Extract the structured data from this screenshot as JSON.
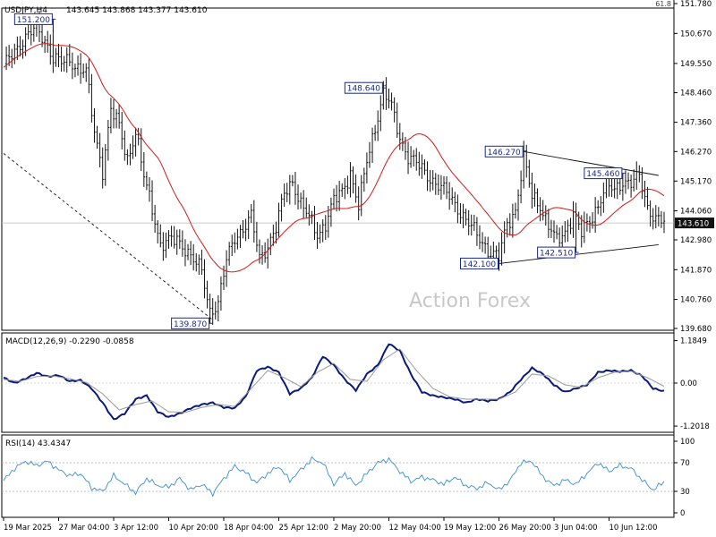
{
  "colors": {
    "background": "#ffffff",
    "candles": "#111111",
    "ma": "#d21a1a",
    "macd_line": "#0a1a7a",
    "macd_signal": "#999999",
    "rsi": "#3a8ccf",
    "trendline": "#111111",
    "label_border": "#1a2a8c",
    "label_text": "#1a2a8c",
    "current_price_bg": "#111111",
    "current_price_text": "#ffffff",
    "watermark": "#c8c8c8"
  },
  "header": {
    "symbol": "USDJPY,H4",
    "ohlc": "143.645 143.868 143.377 143.610",
    "top_right_marker": "61.8"
  },
  "watermark": "Action Forex",
  "chart_data": [
    {
      "type": "candlestick",
      "title": "USDJPY,H4",
      "ylim": [
        139.68,
        151.78
      ],
      "y_ticks": [
        "151.780",
        "150.670",
        "149.550",
        "148.460",
        "147.360",
        "146.270",
        "145.170",
        "144.060",
        "142.980",
        "141.870",
        "140.760",
        "139.680"
      ],
      "current_price": "143.610",
      "ma_indicator": true,
      "close_anchors": [
        [
          0,
          149.4
        ],
        [
          3,
          149.9
        ],
        [
          6,
          150.3
        ],
        [
          9,
          150.6
        ],
        [
          12,
          150.85
        ],
        [
          15,
          150.45
        ],
        [
          18,
          149.75
        ],
        [
          21,
          149.55
        ],
        [
          24,
          149.7
        ],
        [
          27,
          149.4
        ],
        [
          30,
          149.2
        ],
        [
          33,
          147.0
        ],
        [
          36,
          145.6
        ],
        [
          39,
          147.8
        ],
        [
          42,
          147.2
        ],
        [
          45,
          146.0
        ],
        [
          48,
          147.0
        ],
        [
          51,
          145.3
        ],
        [
          54,
          144.2
        ],
        [
          57,
          142.8
        ],
        [
          60,
          142.9
        ],
        [
          63,
          143.0
        ],
        [
          66,
          142.7
        ],
        [
          69,
          142.2
        ],
        [
          72,
          141.8
        ],
        [
          75,
          140.35
        ],
        [
          78,
          140.6
        ],
        [
          81,
          142.2
        ],
        [
          84,
          143.1
        ],
        [
          87,
          143.4
        ],
        [
          90,
          143.8
        ],
        [
          93,
          142.3
        ],
        [
          96,
          142.8
        ],
        [
          99,
          143.4
        ],
        [
          102,
          144.7
        ],
        [
          105,
          145.2
        ],
        [
          108,
          144.3
        ],
        [
          111,
          143.8
        ],
        [
          114,
          143.2
        ],
        [
          117,
          143.6
        ],
        [
          120,
          144.4
        ],
        [
          123,
          144.8
        ],
        [
          126,
          145.5
        ],
        [
          129,
          144.2
        ],
        [
          132,
          145.9
        ],
        [
          135,
          147.2
        ],
        [
          138,
          148.5
        ],
        [
          141,
          147.9
        ],
        [
          144,
          146.8
        ],
        [
          147,
          146.1
        ],
        [
          150,
          145.8
        ],
        [
          153,
          145.5
        ],
        [
          156,
          145.2
        ],
        [
          159,
          144.9
        ],
        [
          162,
          144.6
        ],
        [
          165,
          144.2
        ],
        [
          168,
          143.7
        ],
        [
          171,
          143.3
        ],
        [
          174,
          142.9
        ],
        [
          177,
          142.5
        ],
        [
          180,
          142.3
        ],
        [
          183,
          143.6
        ],
        [
          186,
          144.1
        ],
        [
          189,
          146.0
        ],
        [
          192,
          144.6
        ],
        [
          195,
          144.3
        ],
        [
          198,
          143.5
        ],
        [
          201,
          142.9
        ],
        [
          204,
          143.3
        ],
        [
          207,
          144.0
        ],
        [
          210,
          143.2
        ],
        [
          213,
          143.7
        ],
        [
          216,
          144.3
        ],
        [
          219,
          145.0
        ],
        [
          222,
          144.8
        ],
        [
          225,
          145.2
        ],
        [
          228,
          145.1
        ],
        [
          231,
          145.3
        ],
        [
          234,
          144.2
        ],
        [
          237,
          143.8
        ],
        [
          240,
          143.61
        ]
      ],
      "price_labels": [
        {
          "text": "151.200",
          "bar": 18,
          "value": 151.2,
          "side": "left"
        },
        {
          "text": "139.870",
          "bar": 75,
          "value": 139.87,
          "side": "left"
        },
        {
          "text": "148.640",
          "bar": 138,
          "value": 148.64,
          "side": "left"
        },
        {
          "text": "146.270",
          "bar": 189,
          "value": 146.27,
          "side": "left"
        },
        {
          "text": "145.460",
          "bar": 225,
          "value": 145.46,
          "side": "left"
        },
        {
          "text": "142.100",
          "bar": 180,
          "value": 142.1,
          "side": "left"
        },
        {
          "text": "142.510",
          "bar": 208,
          "value": 142.51,
          "side": "left"
        }
      ],
      "trendlines": [
        {
          "from": [
            0,
            146.2
          ],
          "to": [
            76,
            140.0
          ],
          "dashed": true
        },
        {
          "from": [
            189,
            146.27
          ],
          "to": [
            238,
            145.38
          ],
          "dashed": false
        },
        {
          "from": [
            180,
            142.1
          ],
          "to": [
            238,
            142.8
          ],
          "dashed": false
        }
      ]
    },
    {
      "type": "line",
      "title": "MACD(12,26,9) -0.2290 -0.0858",
      "ylim": [
        -1.3,
        1.3
      ],
      "y_ticks": [
        "1.1849",
        "0.00",
        "-1.2018"
      ],
      "series": [
        {
          "name": "MACD",
          "anchors": [
            [
              0,
              0.15
            ],
            [
              4,
              0.0
            ],
            [
              8,
              0.12
            ],
            [
              12,
              0.28
            ],
            [
              16,
              0.18
            ],
            [
              20,
              0.22
            ],
            [
              24,
              0.05
            ],
            [
              28,
              0.08
            ],
            [
              32,
              -0.15
            ],
            [
              36,
              -0.55
            ],
            [
              40,
              -1.02
            ],
            [
              44,
              -0.85
            ],
            [
              48,
              -0.45
            ],
            [
              52,
              -0.35
            ],
            [
              56,
              -0.8
            ],
            [
              60,
              -0.95
            ],
            [
              64,
              -0.85
            ],
            [
              68,
              -0.7
            ],
            [
              72,
              -0.6
            ],
            [
              76,
              -0.55
            ],
            [
              80,
              -0.68
            ],
            [
              84,
              -0.7
            ],
            [
              88,
              -0.38
            ],
            [
              92,
              0.35
            ],
            [
              96,
              0.45
            ],
            [
              100,
              0.3
            ],
            [
              104,
              -0.3
            ],
            [
              108,
              -0.15
            ],
            [
              112,
              0.15
            ],
            [
              116,
              0.75
            ],
            [
              120,
              0.5
            ],
            [
              124,
              0.1
            ],
            [
              128,
              -0.2
            ],
            [
              132,
              0.25
            ],
            [
              136,
              0.5
            ],
            [
              140,
              1.1
            ],
            [
              144,
              0.9
            ],
            [
              148,
              0.25
            ],
            [
              152,
              -0.25
            ],
            [
              156,
              -0.35
            ],
            [
              160,
              -0.4
            ],
            [
              164,
              -0.45
            ],
            [
              168,
              -0.55
            ],
            [
              172,
              -0.45
            ],
            [
              176,
              -0.5
            ],
            [
              180,
              -0.45
            ],
            [
              184,
              -0.25
            ],
            [
              188,
              0.1
            ],
            [
              192,
              0.42
            ],
            [
              196,
              0.25
            ],
            [
              200,
              -0.05
            ],
            [
              204,
              -0.25
            ],
            [
              208,
              -0.15
            ],
            [
              212,
              -0.05
            ],
            [
              216,
              0.3
            ],
            [
              220,
              0.35
            ],
            [
              224,
              0.32
            ],
            [
              228,
              0.35
            ],
            [
              232,
              0.2
            ],
            [
              236,
              -0.15
            ],
            [
              240,
              -0.23
            ]
          ]
        },
        {
          "name": "Signal",
          "anchors": [
            [
              0,
              0.1
            ],
            [
              6,
              0.05
            ],
            [
              12,
              0.18
            ],
            [
              18,
              0.2
            ],
            [
              24,
              0.12
            ],
            [
              30,
              0.02
            ],
            [
              36,
              -0.3
            ],
            [
              42,
              -0.75
            ],
            [
              48,
              -0.6
            ],
            [
              54,
              -0.5
            ],
            [
              60,
              -0.8
            ],
            [
              66,
              -0.82
            ],
            [
              72,
              -0.68
            ],
            [
              78,
              -0.6
            ],
            [
              84,
              -0.65
            ],
            [
              90,
              -0.15
            ],
            [
              96,
              0.35
            ],
            [
              102,
              0.15
            ],
            [
              108,
              -0.1
            ],
            [
              114,
              0.3
            ],
            [
              120,
              0.55
            ],
            [
              126,
              0.1
            ],
            [
              132,
              0.05
            ],
            [
              138,
              0.65
            ],
            [
              144,
              0.95
            ],
            [
              150,
              0.35
            ],
            [
              156,
              -0.15
            ],
            [
              162,
              -0.38
            ],
            [
              168,
              -0.45
            ],
            [
              174,
              -0.45
            ],
            [
              180,
              -0.45
            ],
            [
              186,
              -0.25
            ],
            [
              192,
              0.25
            ],
            [
              198,
              0.2
            ],
            [
              204,
              -0.05
            ],
            [
              210,
              -0.12
            ],
            [
              216,
              0.15
            ],
            [
              222,
              0.3
            ],
            [
              228,
              0.33
            ],
            [
              234,
              0.15
            ],
            [
              240,
              -0.09
            ]
          ]
        }
      ]
    },
    {
      "type": "line",
      "title": "RSI(14) 43.4347",
      "ylim": [
        0,
        100
      ],
      "y_ticks": [
        "100",
        "70",
        "30",
        "0"
      ],
      "series": [
        {
          "name": "RSI",
          "anchors": [
            [
              0,
              45
            ],
            [
              4,
              62
            ],
            [
              8,
              72
            ],
            [
              12,
              66
            ],
            [
              16,
              72
            ],
            [
              20,
              60
            ],
            [
              24,
              52
            ],
            [
              28,
              55
            ],
            [
              32,
              35
            ],
            [
              36,
              30
            ],
            [
              40,
              52
            ],
            [
              44,
              40
            ],
            [
              48,
              28
            ],
            [
              52,
              48
            ],
            [
              56,
              38
            ],
            [
              60,
              36
            ],
            [
              64,
              48
            ],
            [
              68,
              32
            ],
            [
              72,
              40
            ],
            [
              76,
              27
            ],
            [
              80,
              48
            ],
            [
              84,
              65
            ],
            [
              88,
              56
            ],
            [
              92,
              42
            ],
            [
              96,
              55
            ],
            [
              100,
              65
            ],
            [
              104,
              45
            ],
            [
              108,
              60
            ],
            [
              112,
              75
            ],
            [
              116,
              70
            ],
            [
              120,
              40
            ],
            [
              124,
              55
            ],
            [
              128,
              38
            ],
            [
              132,
              55
            ],
            [
              136,
              70
            ],
            [
              140,
              75
            ],
            [
              144,
              58
            ],
            [
              148,
              44
            ],
            [
              152,
              50
            ],
            [
              156,
              46
            ],
            [
              160,
              40
            ],
            [
              164,
              50
            ],
            [
              168,
              38
            ],
            [
              172,
              34
            ],
            [
              176,
              42
            ],
            [
              180,
              32
            ],
            [
              184,
              45
            ],
            [
              188,
              70
            ],
            [
              192,
              72
            ],
            [
              196,
              50
            ],
            [
              200,
              38
            ],
            [
              204,
              46
            ],
            [
              208,
              40
            ],
            [
              212,
              55
            ],
            [
              216,
              70
            ],
            [
              220,
              58
            ],
            [
              224,
              66
            ],
            [
              228,
              62
            ],
            [
              232,
              46
            ],
            [
              236,
              32
            ],
            [
              240,
              43.43
            ]
          ]
        }
      ]
    }
  ],
  "x_axis": {
    "tick_labels": [
      {
        "bar": 0,
        "text": "19 Mar 2025"
      },
      {
        "bar": 20,
        "text": "27 Mar 04:00"
      },
      {
        "bar": 40,
        "text": "3 Apr 12:00"
      },
      {
        "bar": 60,
        "text": "10 Apr 20:00"
      },
      {
        "bar": 80,
        "text": "18 Apr 04:00"
      },
      {
        "bar": 100,
        "text": "25 Apr 12:00"
      },
      {
        "bar": 120,
        "text": "2 May 20:00"
      },
      {
        "bar": 140,
        "text": "12 May 04:00"
      },
      {
        "bar": 160,
        "text": "19 May 12:00"
      },
      {
        "bar": 180,
        "text": "26 May 20:00"
      },
      {
        "bar": 200,
        "text": "3 Jun 04:00"
      },
      {
        "bar": 220,
        "text": "10 Jun 12:00"
      }
    ]
  }
}
